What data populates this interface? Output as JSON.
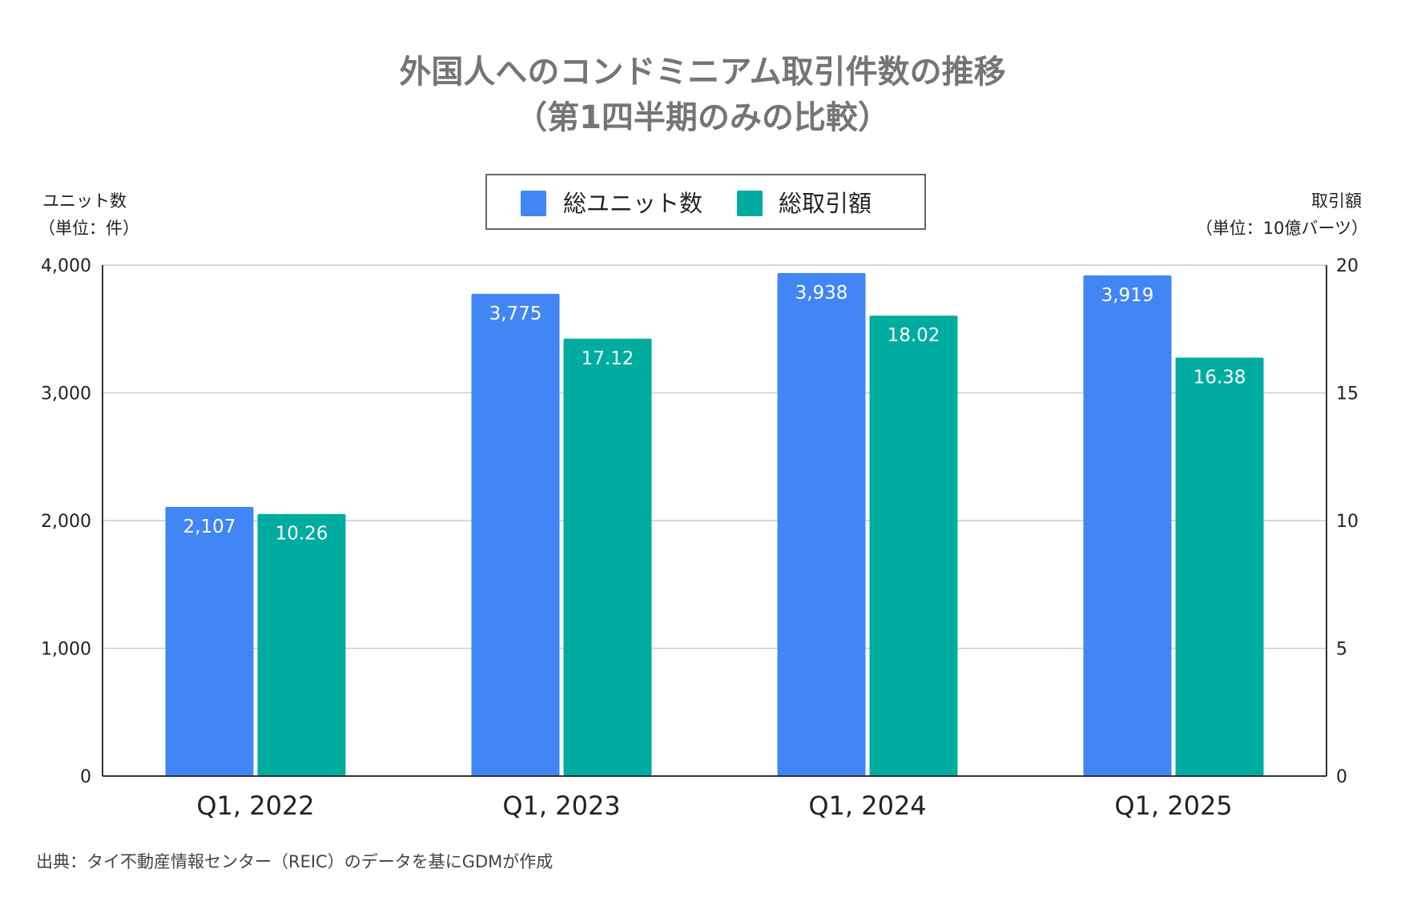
{
  "chart_data": {
    "type": "bar",
    "title_line1": "外国人へのコンドミニアム取引件数の推移",
    "title_line2": "（第1四半期のみの比較）",
    "categories": [
      "Q1, 2022",
      "Q1, 2023",
      "Q1, 2024",
      "Q1, 2025"
    ],
    "series": [
      {
        "name": "総ユニット数",
        "values": [
          2107,
          3775,
          3938,
          3919
        ],
        "labels": [
          "2,107",
          "3,775",
          "3,938",
          "3,919"
        ],
        "axis": "left",
        "color": "#4285F4"
      },
      {
        "name": "総取引額",
        "values": [
          10.26,
          17.12,
          18.02,
          16.38
        ],
        "labels": [
          "10.26",
          "17.12",
          "18.02",
          "16.38"
        ],
        "axis": "right",
        "color": "#00ACA0"
      }
    ],
    "y_left": {
      "label_line1": "ユニット数",
      "label_line2": "（単位：件）",
      "range": [
        0,
        4000
      ],
      "ticks": [
        "0",
        "1,000",
        "2,000",
        "3,000",
        "4,000"
      ],
      "tick_values": [
        0,
        1000,
        2000,
        3000,
        4000
      ]
    },
    "y_right": {
      "label_line1": "取引額",
      "label_line2": "（単位：10億バーツ）",
      "range": [
        0,
        20
      ],
      "ticks": [
        "0",
        "5",
        "10",
        "15",
        "20"
      ],
      "tick_values": [
        0,
        5,
        10,
        15,
        20
      ]
    },
    "grid": true,
    "legend_position": "top-center",
    "source": "出典：タイ不動産情報センター（REIC）のデータを基にGDMが作成"
  }
}
